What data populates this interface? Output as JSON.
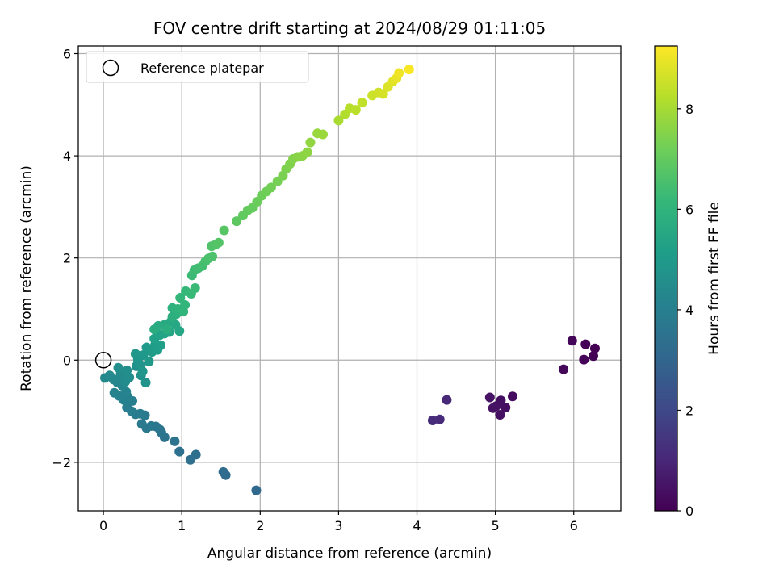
{
  "chart_data": {
    "type": "scatter",
    "title": "FOV centre drift starting at 2024/08/29 01:11:05",
    "xlabel": "Angular distance from reference (arcmin)",
    "ylabel": "Rotation from reference (arcmin)",
    "xlim": [
      -0.32,
      6.6
    ],
    "ylim": [
      -2.95,
      6.15
    ],
    "x_ticks": [
      0,
      1,
      2,
      3,
      4,
      5,
      6
    ],
    "y_ticks": [
      -2,
      0,
      2,
      4,
      6
    ],
    "grid": true,
    "legend": {
      "placement": "upper-left",
      "entries": [
        "Reference platepar"
      ]
    },
    "reference_point": {
      "label": "Reference platepar",
      "x": 0,
      "y": 0
    },
    "colorbar": {
      "label": "Hours from first FF file",
      "colormap": "viridis",
      "range": [
        0,
        9.25
      ],
      "ticks": [
        0,
        2,
        4,
        6,
        8
      ]
    },
    "series": [
      {
        "points": [
          {
            "x": 6.27,
            "y": 0.23,
            "t": 0.0
          },
          {
            "x": 6.25,
            "y": 0.08,
            "t": 0.03
          },
          {
            "x": 6.15,
            "y": 0.31,
            "t": 0.06
          },
          {
            "x": 6.13,
            "y": 0.01,
            "t": 0.09
          },
          {
            "x": 5.98,
            "y": 0.38,
            "t": 0.12
          },
          {
            "x": 5.87,
            "y": -0.18,
            "t": 0.15
          },
          {
            "x": 5.22,
            "y": -0.71,
            "t": 0.3
          },
          {
            "x": 5.13,
            "y": -0.93,
            "t": 0.33
          },
          {
            "x": 5.07,
            "y": -0.79,
            "t": 0.36
          },
          {
            "x": 5.06,
            "y": -1.07,
            "t": 0.39
          },
          {
            "x": 5.01,
            "y": -0.9,
            "t": 0.42
          },
          {
            "x": 4.97,
            "y": -0.94,
            "t": 0.45
          },
          {
            "x": 4.93,
            "y": -0.73,
            "t": 0.48
          },
          {
            "x": 4.38,
            "y": -0.78,
            "t": 1.05
          },
          {
            "x": 4.29,
            "y": -1.16,
            "t": 1.1
          },
          {
            "x": 4.2,
            "y": -1.18,
            "t": 1.15
          },
          {
            "x": 1.95,
            "y": -2.55,
            "t": 3.1
          },
          {
            "x": 1.56,
            "y": -2.25,
            "t": 3.2
          },
          {
            "x": 1.53,
            "y": -2.19,
            "t": 3.25
          },
          {
            "x": 1.18,
            "y": -1.85,
            "t": 3.35
          },
          {
            "x": 1.11,
            "y": -1.95,
            "t": 3.4
          },
          {
            "x": 0.97,
            "y": -1.79,
            "t": 3.45
          },
          {
            "x": 0.91,
            "y": -1.59,
            "t": 3.5
          },
          {
            "x": 0.78,
            "y": -1.51,
            "t": 3.55
          },
          {
            "x": 0.74,
            "y": -1.42,
            "t": 3.6
          },
          {
            "x": 0.72,
            "y": -1.36,
            "t": 3.63
          },
          {
            "x": 0.67,
            "y": -1.3,
            "t": 3.66
          },
          {
            "x": 0.61,
            "y": -1.29,
            "t": 3.7
          },
          {
            "x": 0.55,
            "y": -1.33,
            "t": 3.73
          },
          {
            "x": 0.49,
            "y": -1.25,
            "t": 3.76
          },
          {
            "x": 0.53,
            "y": -1.08,
            "t": 3.8
          },
          {
            "x": 0.47,
            "y": -1.05,
            "t": 3.84
          },
          {
            "x": 0.41,
            "y": -1.06,
            "t": 3.88
          },
          {
            "x": 0.36,
            "y": -1.0,
            "t": 3.92
          },
          {
            "x": 0.3,
            "y": -0.93,
            "t": 3.96
          },
          {
            "x": 0.37,
            "y": -0.8,
            "t": 4.0
          },
          {
            "x": 0.31,
            "y": -0.72,
            "t": 4.04
          },
          {
            "x": 0.26,
            "y": -0.78,
            "t": 4.08
          },
          {
            "x": 0.2,
            "y": -0.7,
            "t": 4.12
          },
          {
            "x": 0.14,
            "y": -0.64,
            "t": 4.16
          },
          {
            "x": 0.29,
            "y": -0.62,
            "t": 4.2
          },
          {
            "x": 0.24,
            "y": -0.5,
            "t": 4.24
          },
          {
            "x": 0.18,
            "y": -0.44,
            "t": 4.28
          },
          {
            "x": 0.13,
            "y": -0.38,
            "t": 4.32
          },
          {
            "x": 0.02,
            "y": -0.35,
            "t": 4.36
          },
          {
            "x": 0.08,
            "y": -0.3,
            "t": 4.4
          },
          {
            "x": 0.22,
            "y": -0.28,
            "t": 4.44
          },
          {
            "x": 0.28,
            "y": -0.42,
            "t": 4.48
          },
          {
            "x": 0.33,
            "y": -0.34,
            "t": 4.52
          },
          {
            "x": 0.19,
            "y": -0.15,
            "t": 4.56
          },
          {
            "x": 0.3,
            "y": -0.2,
            "t": 4.6
          },
          {
            "x": 0.42,
            "y": -0.12,
            "t": 4.64
          },
          {
            "x": 0.48,
            "y": -0.3,
            "t": 4.68
          },
          {
            "x": 0.54,
            "y": -0.44,
            "t": 4.72
          },
          {
            "x": 0.47,
            "y": -0.09,
            "t": 4.76
          },
          {
            "x": 0.44,
            "y": 0.01,
            "t": 4.8
          },
          {
            "x": 0.5,
            "y": -0.22,
            "t": 4.84
          },
          {
            "x": 0.41,
            "y": 0.12,
            "t": 4.88
          },
          {
            "x": 0.51,
            "y": 0.1,
            "t": 4.92
          },
          {
            "x": 0.58,
            "y": -0.03,
            "t": 4.96
          },
          {
            "x": 0.55,
            "y": 0.25,
            "t": 5.0
          },
          {
            "x": 0.62,
            "y": 0.16,
            "t": 5.05
          },
          {
            "x": 0.66,
            "y": 0.3,
            "t": 5.1
          },
          {
            "x": 0.69,
            "y": 0.2,
            "t": 5.15
          },
          {
            "x": 0.73,
            "y": 0.29,
            "t": 5.2
          },
          {
            "x": 0.65,
            "y": 0.42,
            "t": 5.25
          },
          {
            "x": 0.72,
            "y": 0.49,
            "t": 5.3
          },
          {
            "x": 0.78,
            "y": 0.52,
            "t": 5.35
          },
          {
            "x": 0.84,
            "y": 0.55,
            "t": 5.4
          },
          {
            "x": 0.97,
            "y": 0.57,
            "t": 5.45
          },
          {
            "x": 0.92,
            "y": 0.69,
            "t": 5.5
          },
          {
            "x": 0.86,
            "y": 0.75,
            "t": 5.55
          },
          {
            "x": 0.78,
            "y": 0.69,
            "t": 5.6
          },
          {
            "x": 0.7,
            "y": 0.67,
            "t": 5.65
          },
          {
            "x": 0.65,
            "y": 0.6,
            "t": 5.7
          },
          {
            "x": 0.81,
            "y": 0.6,
            "t": 5.75
          },
          {
            "x": 0.88,
            "y": 0.85,
            "t": 5.8
          },
          {
            "x": 0.93,
            "y": 0.9,
            "t": 5.85
          },
          {
            "x": 0.88,
            "y": 1.02,
            "t": 5.9
          },
          {
            "x": 0.95,
            "y": 1.0,
            "t": 5.95
          },
          {
            "x": 1.02,
            "y": 0.95,
            "t": 6.0
          },
          {
            "x": 1.04,
            "y": 1.08,
            "t": 6.05
          },
          {
            "x": 0.98,
            "y": 1.22,
            "t": 6.1
          },
          {
            "x": 1.05,
            "y": 1.35,
            "t": 6.15
          },
          {
            "x": 1.12,
            "y": 1.3,
            "t": 6.2
          },
          {
            "x": 1.17,
            "y": 1.41,
            "t": 6.25
          },
          {
            "x": 1.13,
            "y": 1.66,
            "t": 6.3
          },
          {
            "x": 1.16,
            "y": 1.76,
            "t": 6.35
          },
          {
            "x": 1.21,
            "y": 1.8,
            "t": 6.4
          },
          {
            "x": 1.26,
            "y": 1.84,
            "t": 6.45
          },
          {
            "x": 1.3,
            "y": 1.93,
            "t": 6.5
          },
          {
            "x": 1.34,
            "y": 1.99,
            "t": 6.55
          },
          {
            "x": 1.39,
            "y": 2.03,
            "t": 6.6
          },
          {
            "x": 1.38,
            "y": 2.23,
            "t": 6.65
          },
          {
            "x": 1.43,
            "y": 2.26,
            "t": 6.7
          },
          {
            "x": 1.47,
            "y": 2.3,
            "t": 6.75
          },
          {
            "x": 1.54,
            "y": 2.54,
            "t": 6.8
          },
          {
            "x": 1.7,
            "y": 2.72,
            "t": 6.9
          },
          {
            "x": 1.78,
            "y": 2.83,
            "t": 6.95
          },
          {
            "x": 1.84,
            "y": 2.93,
            "t": 7.0
          },
          {
            "x": 1.9,
            "y": 2.98,
            "t": 7.05
          },
          {
            "x": 1.96,
            "y": 3.1,
            "t": 7.1
          },
          {
            "x": 2.02,
            "y": 3.22,
            "t": 7.15
          },
          {
            "x": 2.08,
            "y": 3.3,
            "t": 7.2
          },
          {
            "x": 2.14,
            "y": 3.38,
            "t": 7.25
          },
          {
            "x": 2.22,
            "y": 3.5,
            "t": 7.3
          },
          {
            "x": 2.29,
            "y": 3.61,
            "t": 7.35
          },
          {
            "x": 2.33,
            "y": 3.74,
            "t": 7.4
          },
          {
            "x": 2.38,
            "y": 3.84,
            "t": 7.45
          },
          {
            "x": 2.42,
            "y": 3.94,
            "t": 7.5
          },
          {
            "x": 2.48,
            "y": 3.98,
            "t": 7.55
          },
          {
            "x": 2.54,
            "y": 4.0,
            "t": 7.6
          },
          {
            "x": 2.6,
            "y": 4.07,
            "t": 7.65
          },
          {
            "x": 2.64,
            "y": 4.26,
            "t": 7.7
          },
          {
            "x": 2.73,
            "y": 4.44,
            "t": 7.8
          },
          {
            "x": 2.8,
            "y": 4.42,
            "t": 7.85
          },
          {
            "x": 3.0,
            "y": 4.69,
            "t": 8.05
          },
          {
            "x": 3.08,
            "y": 4.81,
            "t": 8.15
          },
          {
            "x": 3.14,
            "y": 4.93,
            "t": 8.25
          },
          {
            "x": 3.22,
            "y": 4.9,
            "t": 8.3
          },
          {
            "x": 3.3,
            "y": 5.04,
            "t": 8.4
          },
          {
            "x": 3.43,
            "y": 5.18,
            "t": 8.55
          },
          {
            "x": 3.51,
            "y": 5.24,
            "t": 8.62
          },
          {
            "x": 3.57,
            "y": 5.21,
            "t": 8.68
          },
          {
            "x": 3.63,
            "y": 5.35,
            "t": 8.75
          },
          {
            "x": 3.69,
            "y": 5.45,
            "t": 8.85
          },
          {
            "x": 3.74,
            "y": 5.52,
            "t": 8.95
          },
          {
            "x": 3.77,
            "y": 5.62,
            "t": 9.05
          },
          {
            "x": 3.9,
            "y": 5.69,
            "t": 9.2
          }
        ]
      }
    ]
  }
}
